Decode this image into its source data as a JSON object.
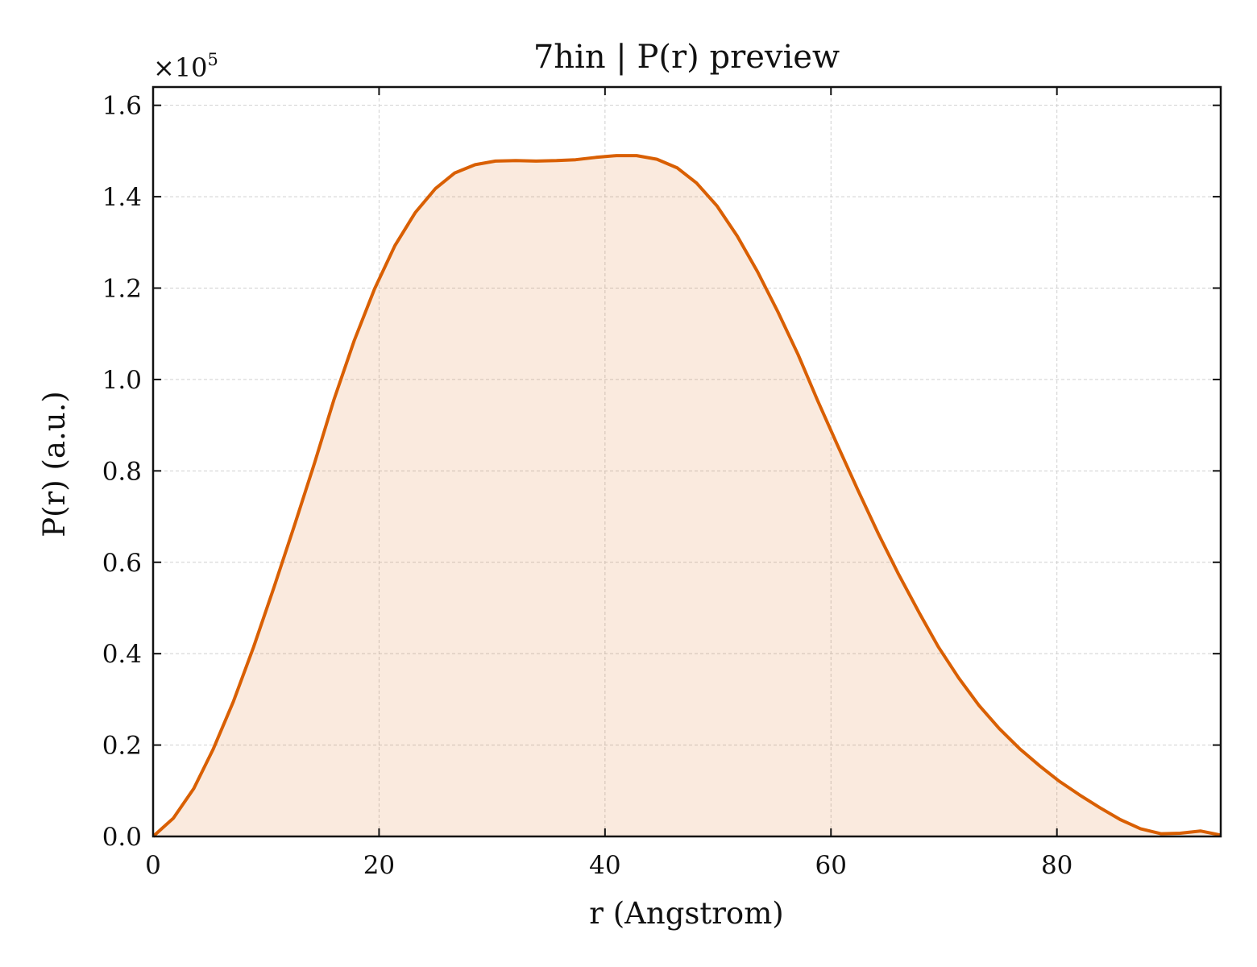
{
  "chart_data": {
    "type": "area",
    "title": "7hin | P(r) preview",
    "xlabel": "r (Angstrom)",
    "ylabel": "P(r) (a.u.)",
    "y_offset_label": "×10",
    "y_offset_exponent": "5",
    "xlim": [
      0,
      94.5
    ],
    "ylim": [
      0,
      1.64
    ],
    "y_scale_factor": 100000,
    "grid": true,
    "x_ticks": [
      0,
      20,
      40,
      60,
      80
    ],
    "x_tick_labels": [
      "0",
      "20",
      "40",
      "60",
      "80"
    ],
    "y_ticks": [
      0,
      0.2,
      0.4,
      0.6,
      0.8,
      1.0,
      1.2,
      1.4,
      1.6
    ],
    "y_tick_labels": [
      "0.0",
      "0.2",
      "0.4",
      "0.6",
      "0.8",
      "1.0",
      "1.2",
      "1.4",
      "1.6"
    ],
    "series": [
      {
        "color": "#d95f02",
        "fill_color": "#d95f02",
        "x": [
          0,
          1.8,
          3.6,
          5.3,
          7.1,
          8.9,
          10.7,
          12.5,
          14.3,
          16.0,
          17.8,
          19.6,
          21.4,
          23.2,
          25.0,
          26.7,
          28.5,
          30.3,
          32.1,
          33.9,
          35.7,
          37.4,
          39.2,
          41.0,
          42.8,
          44.6,
          46.4,
          48.1,
          49.9,
          51.7,
          53.5,
          55.3,
          57.1,
          58.8,
          60.6,
          62.4,
          64.2,
          66.0,
          67.8,
          69.5,
          71.3,
          73.1,
          74.9,
          76.7,
          78.5,
          80.2,
          82.0,
          83.8,
          85.6,
          87.4,
          89.2,
          90.9,
          92.7,
          94.5
        ],
        "y": [
          0.0,
          0.04,
          0.105,
          0.19,
          0.295,
          0.415,
          0.545,
          0.68,
          0.818,
          0.955,
          1.085,
          1.198,
          1.293,
          1.365,
          1.418,
          1.452,
          1.47,
          1.478,
          1.479,
          1.478,
          1.479,
          1.481,
          1.486,
          1.49,
          1.49,
          1.482,
          1.463,
          1.43,
          1.38,
          1.314,
          1.236,
          1.148,
          1.054,
          0.955,
          0.855,
          0.757,
          0.662,
          0.573,
          0.49,
          0.415,
          0.347,
          0.287,
          0.236,
          0.192,
          0.154,
          0.121,
          0.091,
          0.063,
          0.037,
          0.017,
          0.006,
          0.007,
          0.012,
          0.003
        ]
      }
    ]
  }
}
